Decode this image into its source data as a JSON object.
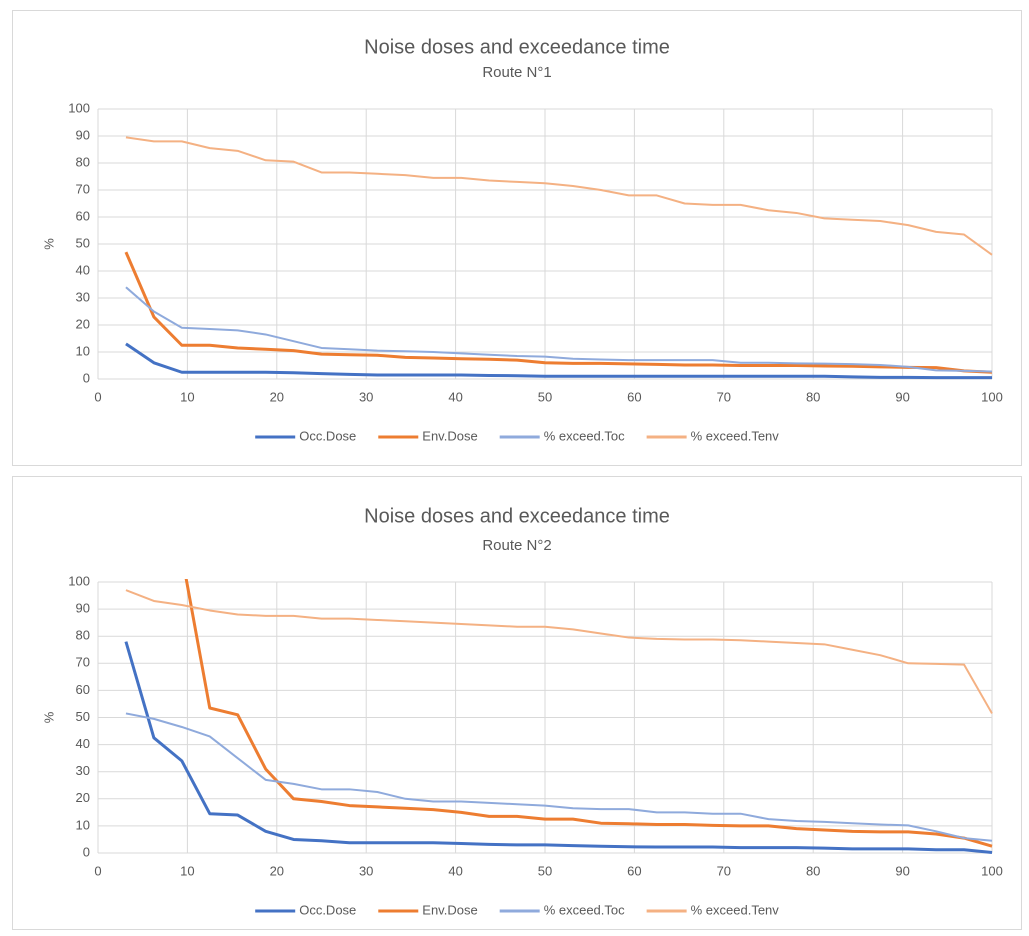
{
  "chart_data": [
    {
      "type": "line",
      "title": "Noise doses and exceedance time",
      "subtitle": "Route N°1",
      "y_label": "%",
      "x": [
        3.125,
        6.25,
        9.375,
        12.5,
        15.625,
        18.75,
        21.875,
        25,
        28.125,
        31.25,
        34.375,
        37.5,
        40.625,
        43.75,
        46.875,
        50,
        53.125,
        56.25,
        59.375,
        62.5,
        65.625,
        68.75,
        71.875,
        75,
        78.125,
        81.25,
        84.375,
        87.5,
        90.625,
        93.75,
        96.875,
        100
      ],
      "xlim": [
        0,
        100
      ],
      "xticks": [
        0,
        10,
        20,
        30,
        40,
        50,
        60,
        70,
        80,
        90,
        100
      ],
      "ylim": [
        0,
        100
      ],
      "yticks": [
        0,
        10,
        20,
        30,
        40,
        50,
        60,
        70,
        80,
        90,
        100
      ],
      "grid": true,
      "legend": "bottom",
      "series": [
        {
          "name": "Occ.Dose",
          "color": "#4472c4",
          "values": [
            13,
            6,
            2.5,
            2.5,
            2.5,
            2.5,
            2.3,
            2,
            1.7,
            1.5,
            1.5,
            1.5,
            1.5,
            1.3,
            1.2,
            1,
            1,
            1,
            1,
            1,
            1,
            1,
            1,
            1,
            1,
            1,
            0.8,
            0.6,
            0.6,
            0.5,
            0.5,
            0.5
          ]
        },
        {
          "name": "Env.Dose",
          "color": "#ed7d31",
          "values": [
            47,
            23,
            12.5,
            12.5,
            11.5,
            11,
            10.5,
            9.2,
            9,
            8.8,
            8,
            7.8,
            7.5,
            7.3,
            7,
            6,
            5.8,
            5.8,
            5.6,
            5.4,
            5.2,
            5.2,
            5,
            5,
            5,
            4.8,
            4.7,
            4.5,
            4.3,
            4.2,
            3,
            2.5
          ]
        },
        {
          "name": "% exceed.Toc",
          "color": "#8faadc",
          "values": [
            34,
            25,
            19,
            18.5,
            18,
            16.5,
            14,
            11.5,
            11,
            10.5,
            10.3,
            10,
            9.5,
            9,
            8.5,
            8.3,
            7.5,
            7.2,
            7,
            7,
            7,
            7,
            6,
            6,
            5.8,
            5.7,
            5.5,
            5.2,
            4.5,
            3.2,
            3,
            2.8
          ]
        },
        {
          "name": "% exceed.Tenv",
          "color": "#f4b183",
          "values": [
            89.5,
            88,
            88,
            85.5,
            84.5,
            81,
            80.5,
            76.5,
            76.5,
            76,
            75.5,
            74.5,
            74.5,
            73.5,
            73,
            72.5,
            71.5,
            70,
            68,
            68,
            65,
            64.5,
            64.5,
            62.5,
            61.5,
            59.5,
            59,
            58.5,
            57,
            54.5,
            53.5,
            46
          ]
        }
      ]
    },
    {
      "type": "line",
      "title": "Noise doses and exceedance time",
      "subtitle": "Route N°2",
      "y_label": "%",
      "x": [
        3.125,
        6.25,
        9.375,
        12.5,
        15.625,
        18.75,
        21.875,
        25,
        28.125,
        31.25,
        34.375,
        37.5,
        40.625,
        43.75,
        46.875,
        50,
        53.125,
        56.25,
        59.375,
        62.5,
        65.625,
        68.75,
        71.875,
        75,
        78.125,
        81.25,
        84.375,
        87.5,
        90.625,
        93.75,
        96.875,
        100
      ],
      "xlim": [
        0,
        100
      ],
      "xticks": [
        0,
        10,
        20,
        30,
        40,
        50,
        60,
        70,
        80,
        90,
        100
      ],
      "ylim": [
        0,
        100
      ],
      "yticks": [
        0,
        10,
        20,
        30,
        40,
        50,
        60,
        70,
        80,
        90,
        100
      ],
      "grid": true,
      "legend": "bottom",
      "series": [
        {
          "name": "Occ.Dose",
          "color": "#4472c4",
          "values": [
            78,
            42.5,
            34,
            14.5,
            14,
            8,
            5,
            4.5,
            3.8,
            3.8,
            3.8,
            3.8,
            3.5,
            3.2,
            3,
            3,
            2.7,
            2.5,
            2.3,
            2.2,
            2.2,
            2.2,
            2,
            2,
            2,
            1.8,
            1.5,
            1.5,
            1.5,
            1.2,
            1.2,
            0.2
          ]
        },
        {
          "name": "Env.Dose",
          "color": "#ed7d31",
          "values": [
            null,
            null,
            110,
            53.5,
            51,
            31,
            20,
            19,
            17.5,
            17,
            16.5,
            16,
            15,
            13.5,
            13.5,
            12.5,
            12.5,
            11,
            10.8,
            10.5,
            10.5,
            10.2,
            10,
            10,
            9,
            8.5,
            8,
            7.8,
            7.8,
            7,
            5.5,
            2.5
          ]
        },
        {
          "name": "% exceed.Toc",
          "color": "#8faadc",
          "values": [
            51.5,
            49.5,
            46.5,
            43,
            35,
            27,
            25.5,
            23.5,
            23.5,
            22.5,
            20,
            19,
            19,
            18.5,
            18,
            17.5,
            16.5,
            16.2,
            16.2,
            15,
            15,
            14.5,
            14.5,
            12.5,
            11.8,
            11.5,
            11,
            10.5,
            10.2,
            8,
            5.5,
            4.5
          ]
        },
        {
          "name": "% exceed.Tenv",
          "color": "#f4b183",
          "values": [
            97,
            93,
            91.5,
            89.5,
            88,
            87.5,
            87.5,
            86.5,
            86.5,
            86,
            85.5,
            85,
            84.5,
            84,
            83.5,
            83.5,
            82.5,
            81,
            79.5,
            79,
            78.8,
            78.8,
            78.5,
            78,
            77.5,
            77,
            75,
            73,
            70,
            69.8,
            69.5,
            51.5
          ]
        }
      ]
    }
  ]
}
